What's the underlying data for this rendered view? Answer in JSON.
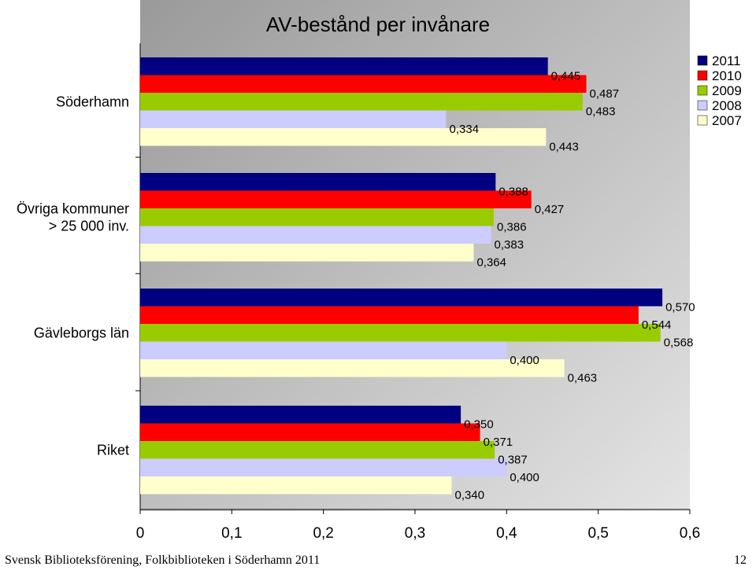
{
  "chart_data": {
    "type": "bar",
    "orientation": "horizontal",
    "title": "AV-bestånd per invånare",
    "categories": [
      "Söderhamn",
      "Övriga kommuner\n> 25 000 inv.",
      "Gävleborgs län",
      "Riket"
    ],
    "series": [
      {
        "name": "2011",
        "color": "#000080",
        "values": [
          0.445,
          0.388,
          0.57,
          0.35
        ],
        "labels": [
          "0,445",
          "0,388",
          "0,570",
          "0,350"
        ]
      },
      {
        "name": "2010",
        "color": "#ff0000",
        "values": [
          0.487,
          0.427,
          0.544,
          0.371
        ],
        "labels": [
          "0,487",
          "0,427",
          "0,544",
          "0,371"
        ]
      },
      {
        "name": "2009",
        "color": "#99cc00",
        "values": [
          0.483,
          0.386,
          0.568,
          0.387
        ],
        "labels": [
          "0,483",
          "0,386",
          "0,568",
          "0,387"
        ]
      },
      {
        "name": "2008",
        "color": "#ccccff",
        "values": [
          0.334,
          0.383,
          0.4,
          0.4
        ],
        "labels": [
          "0,334",
          "0,383",
          "0,400",
          "0,400"
        ]
      },
      {
        "name": "2007",
        "color": "#ffffcc",
        "values": [
          0.443,
          0.364,
          0.463,
          0.34
        ],
        "labels": [
          "0,443",
          "0,364",
          "0,463",
          "0,340"
        ]
      }
    ],
    "xlim": [
      0,
      0.6
    ],
    "xticks": [
      0,
      0.1,
      0.2,
      0.3,
      0.4,
      0.5,
      0.6
    ],
    "xtick_labels": [
      "0",
      "0,1",
      "0,2",
      "0,3",
      "0,4",
      "0,5",
      "0,6"
    ],
    "plot_background": "#c0c0c0",
    "grid": false,
    "legend_position": "top-right"
  },
  "footer": {
    "left": "Svensk Biblioteksförening, Folkbiblioteken i Söderhamn 2011",
    "page": "12"
  }
}
